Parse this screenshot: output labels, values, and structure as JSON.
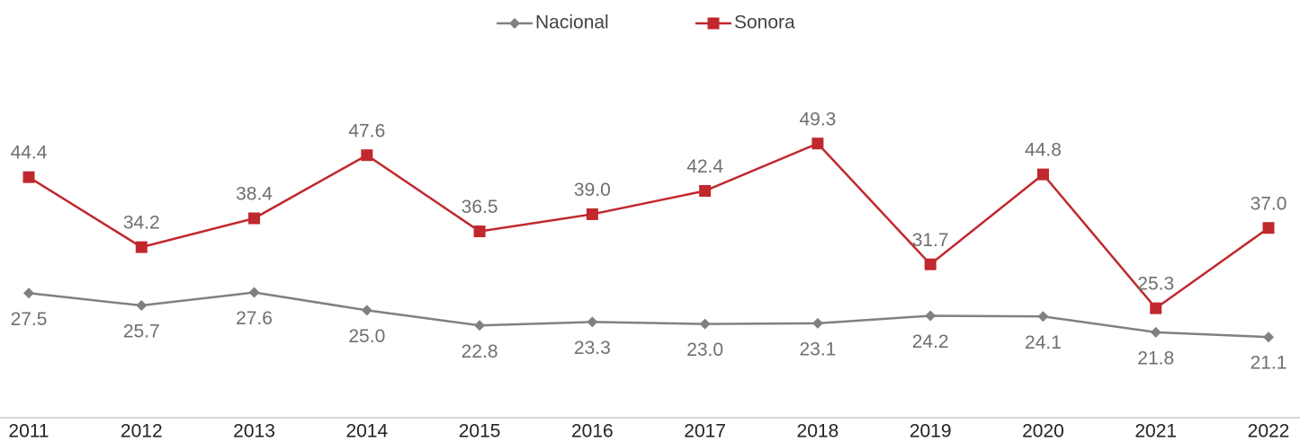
{
  "chart_data": {
    "type": "line",
    "categories": [
      "2011",
      "2012",
      "2013",
      "2014",
      "2015",
      "2016",
      "2017",
      "2018",
      "2019",
      "2020",
      "2021",
      "2022"
    ],
    "series": [
      {
        "name": "Nacional",
        "color": "#808080",
        "marker": "diamond",
        "values": [
          27.5,
          25.7,
          27.6,
          25.0,
          22.8,
          23.3,
          23.0,
          23.1,
          24.2,
          24.1,
          21.8,
          21.1
        ],
        "value_labels": [
          "27.5",
          "25.7",
          "27.6",
          "25.0",
          "22.8",
          "23.3",
          "23.0",
          "23.1",
          "24.2",
          "24.1",
          "21.8",
          "21.1"
        ]
      },
      {
        "name": "Sonora",
        "color": "#c0282d",
        "marker": "square",
        "values": [
          44.4,
          34.2,
          38.4,
          47.6,
          36.5,
          39.0,
          42.4,
          49.3,
          31.7,
          44.8,
          25.3,
          37.0
        ],
        "value_labels": [
          "44.4",
          "34.2",
          "38.4",
          "47.6",
          "36.5",
          "39.0",
          "42.4",
          "49.3",
          "31.7",
          "44.8",
          "25.3",
          "37.0"
        ]
      }
    ],
    "ylim": [
      10,
      60
    ],
    "legend": "top"
  }
}
